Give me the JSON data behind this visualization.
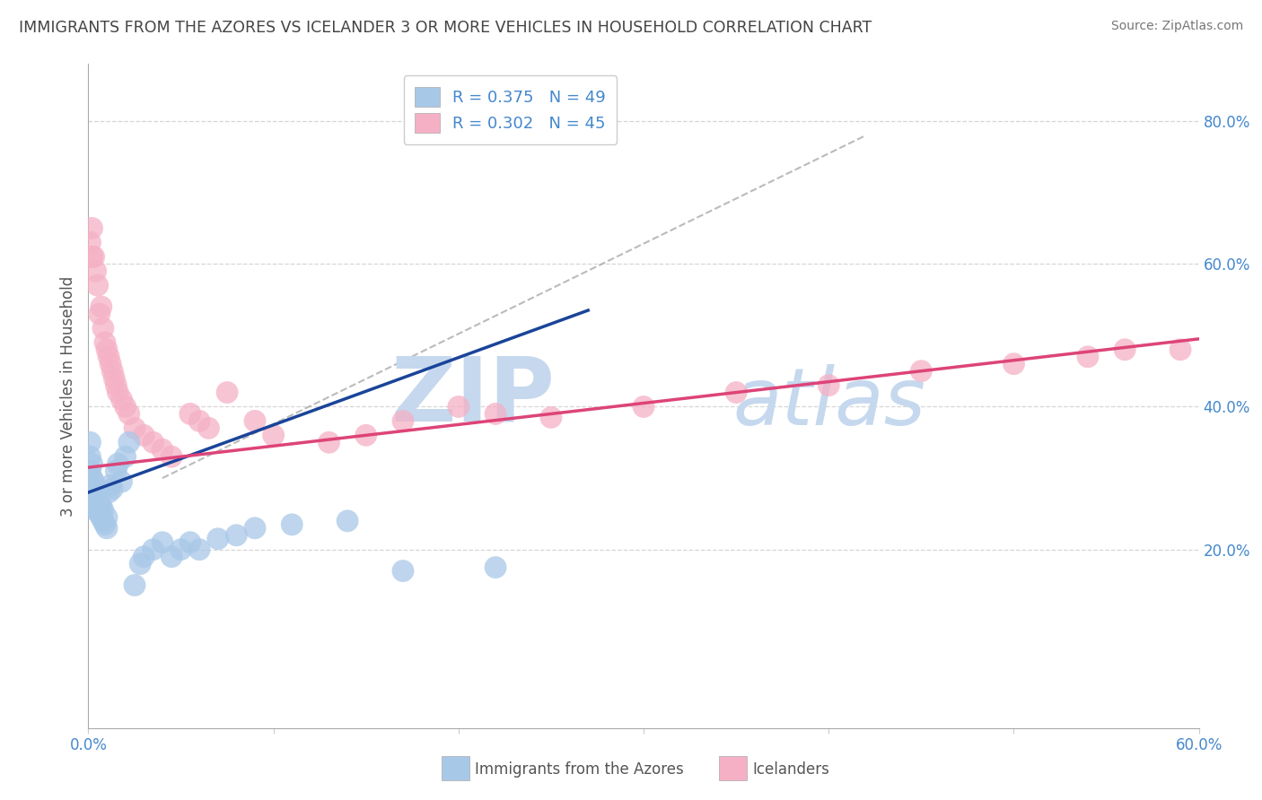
{
  "title": "IMMIGRANTS FROM THE AZORES VS ICELANDER 3 OR MORE VEHICLES IN HOUSEHOLD CORRELATION CHART",
  "source": "Source: ZipAtlas.com",
  "ylabel": "3 or more Vehicles in Household",
  "legend_label_blue": "R = 0.375   N = 49",
  "legend_label_pink": "R = 0.302   N = 45",
  "blue_color": "#a8c8e8",
  "pink_color": "#f5b0c5",
  "blue_line_color": "#1a4499",
  "pink_line_color": "#dd4477",
  "watermark1": "ZIP",
  "watermark2": "atlas",
  "watermark_color": "#c5d8ee",
  "background_color": "#ffffff",
  "grid_color": "#cccccc",
  "title_color": "#444444",
  "axis_color": "#4488cc",
  "xlim": [
    0.0,
    0.6
  ],
  "ylim": [
    -0.05,
    0.88
  ],
  "blue_scatter_x": [
    0.001,
    0.001,
    0.001,
    0.001,
    0.001,
    0.002,
    0.002,
    0.002,
    0.002,
    0.003,
    0.003,
    0.003,
    0.004,
    0.004,
    0.005,
    0.005,
    0.006,
    0.006,
    0.007,
    0.007,
    0.008,
    0.008,
    0.009,
    0.01,
    0.01,
    0.011,
    0.012,
    0.013,
    0.015,
    0.016,
    0.018,
    0.02,
    0.022,
    0.025,
    0.028,
    0.03,
    0.035,
    0.04,
    0.045,
    0.05,
    0.055,
    0.06,
    0.07,
    0.08,
    0.09,
    0.11,
    0.14,
    0.17,
    0.22
  ],
  "blue_scatter_y": [
    0.27,
    0.29,
    0.31,
    0.33,
    0.35,
    0.265,
    0.28,
    0.3,
    0.32,
    0.26,
    0.275,
    0.295,
    0.255,
    0.27,
    0.26,
    0.28,
    0.25,
    0.265,
    0.245,
    0.26,
    0.24,
    0.255,
    0.235,
    0.23,
    0.245,
    0.28,
    0.29,
    0.285,
    0.31,
    0.32,
    0.295,
    0.33,
    0.35,
    0.15,
    0.18,
    0.19,
    0.2,
    0.21,
    0.19,
    0.2,
    0.21,
    0.2,
    0.215,
    0.22,
    0.23,
    0.235,
    0.24,
    0.17,
    0.175
  ],
  "pink_scatter_x": [
    0.001,
    0.002,
    0.002,
    0.003,
    0.004,
    0.005,
    0.006,
    0.007,
    0.008,
    0.009,
    0.01,
    0.011,
    0.012,
    0.013,
    0.014,
    0.015,
    0.016,
    0.018,
    0.02,
    0.022,
    0.025,
    0.03,
    0.035,
    0.04,
    0.045,
    0.055,
    0.06,
    0.065,
    0.075,
    0.09,
    0.1,
    0.13,
    0.15,
    0.17,
    0.2,
    0.22,
    0.25,
    0.3,
    0.35,
    0.4,
    0.45,
    0.5,
    0.54,
    0.56,
    0.59
  ],
  "pink_scatter_y": [
    0.63,
    0.61,
    0.65,
    0.61,
    0.59,
    0.57,
    0.53,
    0.54,
    0.51,
    0.49,
    0.48,
    0.47,
    0.46,
    0.45,
    0.44,
    0.43,
    0.42,
    0.41,
    0.4,
    0.39,
    0.37,
    0.36,
    0.35,
    0.34,
    0.33,
    0.39,
    0.38,
    0.37,
    0.42,
    0.38,
    0.36,
    0.35,
    0.36,
    0.38,
    0.4,
    0.39,
    0.385,
    0.4,
    0.42,
    0.43,
    0.45,
    0.46,
    0.47,
    0.48,
    0.48
  ],
  "ref_line_x": [
    0.04,
    0.42
  ],
  "ref_line_y": [
    0.3,
    0.78
  ],
  "blue_line_x0": 0.0,
  "blue_line_x1": 0.27,
  "blue_line_y0": 0.28,
  "blue_line_y1": 0.535,
  "pink_line_x0": 0.0,
  "pink_line_x1": 0.6,
  "pink_line_y0": 0.315,
  "pink_line_y1": 0.495
}
